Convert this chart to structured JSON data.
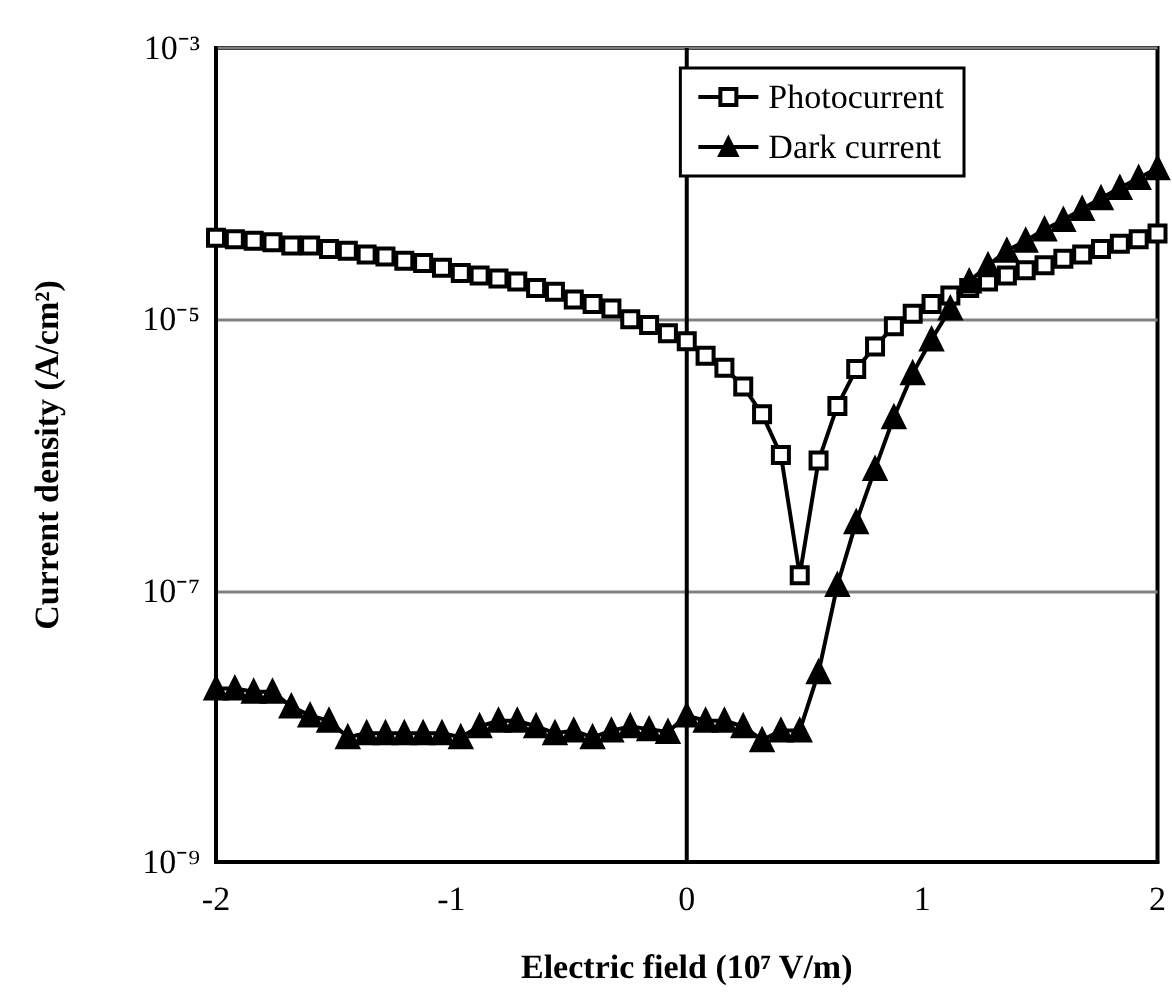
{
  "chart_data": {
    "type": "line",
    "xlabel": "Electric field (10⁷ V/m)",
    "ylabel": "Current density (A/cm²)",
    "x": [
      -2,
      -1.92,
      -1.84,
      -1.76,
      -1.68,
      -1.6,
      -1.52,
      -1.44,
      -1.36,
      -1.28,
      -1.2,
      -1.12,
      -1.04,
      -0.96,
      -0.88,
      -0.8,
      -0.72,
      -0.64,
      -0.56,
      -0.48,
      -0.4,
      -0.32,
      -0.24,
      -0.16,
      -0.08,
      0,
      0.08,
      0.16,
      0.24,
      0.32,
      0.4,
      0.48,
      0.56,
      0.64,
      0.72,
      0.8,
      0.88,
      0.96,
      1.04,
      1.12,
      1.2,
      1.28,
      1.36,
      1.44,
      1.52,
      1.6,
      1.68,
      1.76,
      1.84,
      1.92,
      2
    ],
    "series": [
      {
        "name": "Photocurrent",
        "color": "#000000",
        "marker": "square",
        "values": [
          4e-05,
          3.9e-05,
          3.8e-05,
          3.7e-05,
          3.5e-05,
          3.5e-05,
          3.3e-05,
          3.2e-05,
          3e-05,
          2.9e-05,
          2.7e-05,
          2.6e-05,
          2.4e-05,
          2.2e-05,
          2.1e-05,
          2e-05,
          1.9e-05,
          1.7e-05,
          1.6e-05,
          1.4e-05,
          1.3e-05,
          1.2e-05,
          1e-05,
          9.1e-06,
          7.9e-06,
          6.9e-06,
          5.4e-06,
          4.4e-06,
          3.2e-06,
          2e-06,
          1e-06,
          1.3e-07,
          9.1e-07,
          2.3e-06,
          4.3e-06,
          6.3e-06,
          8.9e-06,
          1.1e-05,
          1.3e-05,
          1.5e-05,
          1.7e-05,
          1.9e-05,
          2.1e-05,
          2.3e-05,
          2.5e-05,
          2.8e-05,
          3e-05,
          3.3e-05,
          3.6e-05,
          3.9e-05,
          4.3e-05
        ]
      },
      {
        "name": "Dark current",
        "color": "#000000",
        "marker": "triangle",
        "values": [
          1.9e-08,
          1.9e-08,
          1.8e-08,
          1.8e-08,
          1.4e-08,
          1.2e-08,
          1.1e-08,
          8.3e-09,
          8.9e-09,
          8.9e-09,
          8.9e-09,
          8.9e-09,
          8.9e-09,
          8.3e-09,
          1e-08,
          1.1e-08,
          1.1e-08,
          1e-08,
          8.9e-09,
          9.3e-09,
          8.3e-09,
          9.3e-09,
          1e-08,
          9.5e-09,
          9.1e-09,
          1.2e-08,
          1.1e-08,
          1.1e-08,
          1e-08,
          7.9e-09,
          9.3e-09,
          9.3e-09,
          2.5e-08,
          1.1e-07,
          3.2e-07,
          7.9e-07,
          1.9e-06,
          4e-06,
          7.1e-06,
          1.2e-05,
          1.9e-05,
          2.5e-05,
          3.2e-05,
          3.8e-05,
          4.6e-05,
          5.4e-05,
          6.5e-05,
          7.8e-05,
          9.3e-05,
          0.00011,
          0.00013
        ]
      }
    ],
    "log": "y",
    "xlim": [
      -2,
      2
    ],
    "xticks": [
      -2,
      -1,
      0,
      1,
      2
    ],
    "ylim": [
      1e-09,
      0.001
    ],
    "yticks": [
      {
        "value": 1e-09,
        "label": "10⁻⁹"
      },
      {
        "value": 1e-07,
        "label": "10⁻⁷"
      },
      {
        "value": 1e-05,
        "label": "10⁻⁵"
      },
      {
        "value": 0.001,
        "label": "10⁻³"
      }
    ],
    "grid": "y",
    "legend": "top right",
    "line_style": "solid",
    "ref_lines": [
      {
        "axis": "x",
        "value": 0,
        "color": "#000000"
      }
    ]
  }
}
